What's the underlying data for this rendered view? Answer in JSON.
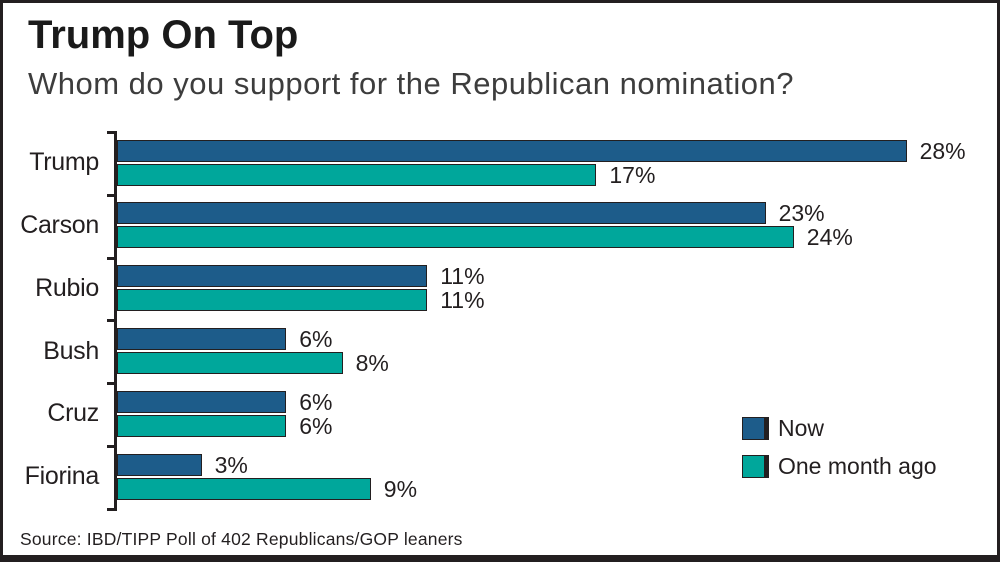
{
  "header": {
    "title": "Trump On Top",
    "subtitle": "Whom do you support for the Republican nomination?"
  },
  "legend": {
    "items": [
      {
        "label": "Now",
        "color": "#1d5c8a"
      },
      {
        "label": "One month ago",
        "color": "#00a79b"
      }
    ]
  },
  "footer": {
    "source": "Source: IBD/TIPP Poll of 402 Republicans/GOP leaners"
  },
  "colors": {
    "now_blue": "#1d5c8a",
    "month_ago_teal": "#00a79b",
    "axis_black": "#231f20",
    "background": "#ffffff"
  },
  "chart_data": {
    "type": "bar",
    "orientation": "horizontal",
    "title": "Trump On Top",
    "subtitle": "Whom do you support for the Republican nomination?",
    "categories": [
      "Trump",
      "Carson",
      "Rubio",
      "Bush",
      "Cruz",
      "Fiorina"
    ],
    "series": [
      {
        "name": "Now",
        "color": "#1d5c8a",
        "values": [
          28,
          23,
          11,
          6,
          6,
          3
        ]
      },
      {
        "name": "One month ago",
        "color": "#00a79b",
        "values": [
          17,
          24,
          11,
          8,
          6,
          9
        ]
      }
    ],
    "value_suffix": "%",
    "xlim": [
      0,
      30
    ],
    "grid": false,
    "legend_position": "bottom-right",
    "source": "Source: IBD/TIPP Poll of 402 Republicans/GOP leaners"
  }
}
